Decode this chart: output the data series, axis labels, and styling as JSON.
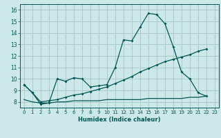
{
  "xlabel": "Humidex (Indice chaleur)",
  "ylabel": "",
  "bg_color": "#cce8e8",
  "grid_color": "#aacccc",
  "line_color": "#005555",
  "xlim": [
    -0.5,
    23.5
  ],
  "ylim": [
    7.5,
    16.5
  ],
  "yticks": [
    8,
    9,
    10,
    11,
    12,
    13,
    14,
    15,
    16
  ],
  "xticks": [
    0,
    1,
    2,
    3,
    4,
    5,
    6,
    7,
    8,
    9,
    10,
    11,
    12,
    13,
    14,
    15,
    16,
    17,
    18,
    19,
    20,
    21,
    22,
    23
  ],
  "x": [
    0,
    1,
    2,
    3,
    4,
    5,
    6,
    7,
    8,
    9,
    10,
    11,
    12,
    13,
    14,
    15,
    16,
    17,
    18,
    19,
    20,
    21,
    22,
    23
  ],
  "line1_x": [
    0,
    1,
    2,
    3,
    4,
    5,
    6,
    7,
    8,
    9,
    10,
    11,
    12,
    13,
    14,
    15,
    16,
    17,
    18,
    19,
    20,
    21,
    22
  ],
  "line1_y": [
    9.5,
    8.8,
    7.8,
    7.9,
    10.0,
    9.8,
    10.1,
    10.0,
    9.3,
    9.4,
    9.5,
    11.0,
    13.4,
    13.3,
    14.5,
    15.7,
    15.6,
    14.8,
    12.8,
    10.6,
    10.0,
    8.8,
    8.5
  ],
  "line2_x": [
    0,
    1,
    2,
    3,
    4,
    5,
    6,
    7,
    8,
    9,
    10,
    11,
    12,
    13,
    14,
    15,
    16,
    17,
    18,
    19,
    20,
    21,
    22
  ],
  "line2_y": [
    9.5,
    8.8,
    8.0,
    8.1,
    8.2,
    8.4,
    8.6,
    8.7,
    8.9,
    9.1,
    9.3,
    9.6,
    9.9,
    10.2,
    10.6,
    10.9,
    11.2,
    11.5,
    11.7,
    11.9,
    12.1,
    12.4,
    12.6
  ],
  "line3_x": [
    0,
    1,
    2,
    3,
    4,
    5,
    6,
    7,
    8,
    9,
    10,
    11,
    12,
    13,
    14,
    15,
    16,
    17,
    18,
    19,
    20,
    21,
    22
  ],
  "line3_y": [
    8.2,
    8.0,
    7.9,
    7.9,
    8.0,
    8.0,
    8.1,
    8.1,
    8.1,
    8.1,
    8.2,
    8.2,
    8.2,
    8.2,
    8.2,
    8.3,
    8.3,
    8.3,
    8.3,
    8.3,
    8.4,
    8.4,
    8.5
  ]
}
